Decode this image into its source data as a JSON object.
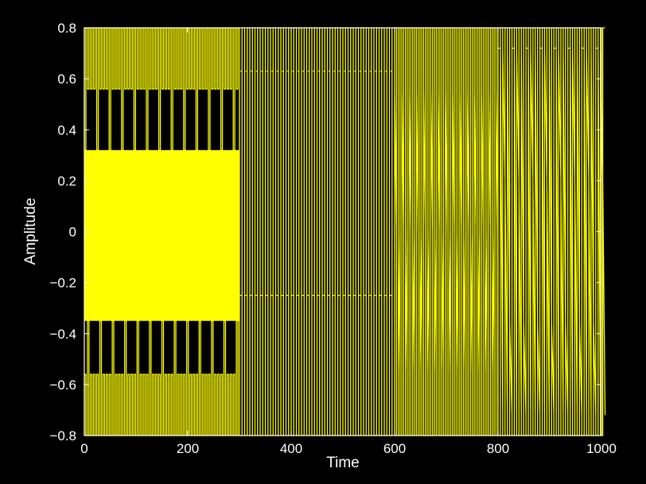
{
  "chart_data": {
    "type": "line",
    "title": "",
    "xlabel": "Time",
    "ylabel": "Amplitude",
    "xlim": [
      0,
      1000
    ],
    "ylim": [
      -0.8,
      0.8
    ],
    "x_ticks": [
      0,
      200,
      400,
      600,
      800,
      1000
    ],
    "x_tick_labels": [
      "0",
      "200",
      "400",
      "600",
      "800",
      "1000"
    ],
    "y_ticks": [
      -0.8,
      -0.6,
      -0.4,
      -0.2,
      0,
      0.2,
      0.4,
      0.6,
      0.8
    ],
    "y_tick_labels": [
      "−0.8",
      "−0.6",
      "−0.4",
      "−0.2",
      "0",
      "0.2",
      "0.4",
      "0.6",
      "0.8"
    ],
    "grid": false,
    "colors": {
      "background": "#000000",
      "plot_area": "#000000",
      "axes": "#ffffff",
      "line": "#ffff00"
    },
    "series": [
      {
        "segments": [
          {
            "x_range": [
              0,
              300
            ],
            "description_levels": [
              0.8,
              0.56,
              0.32,
              -0.35,
              -0.56,
              -0.8
            ],
            "period": 6,
            "fill_band": [
              -0.35,
              0.32
            ],
            "pulse_levels_top": [
              0.56,
              0.32
            ],
            "pulse_levels_bottom": [
              -0.35,
              -0.56
            ]
          },
          {
            "x_range": [
              300,
              600
            ],
            "levels": [
              0.8,
              0.63,
              -0.25,
              -0.8
            ],
            "period": 10
          },
          {
            "x_range": [
              600,
              800
            ],
            "levels": [
              0.8,
              0.56,
              0.0,
              -0.56,
              -0.8
            ],
            "period": 7
          },
          {
            "x_range": [
              800,
              1000
            ],
            "levels": [
              0.8,
              0.72,
              0.2,
              -0.35,
              -0.72,
              -0.8
            ],
            "period": 9
          }
        ]
      }
    ]
  }
}
